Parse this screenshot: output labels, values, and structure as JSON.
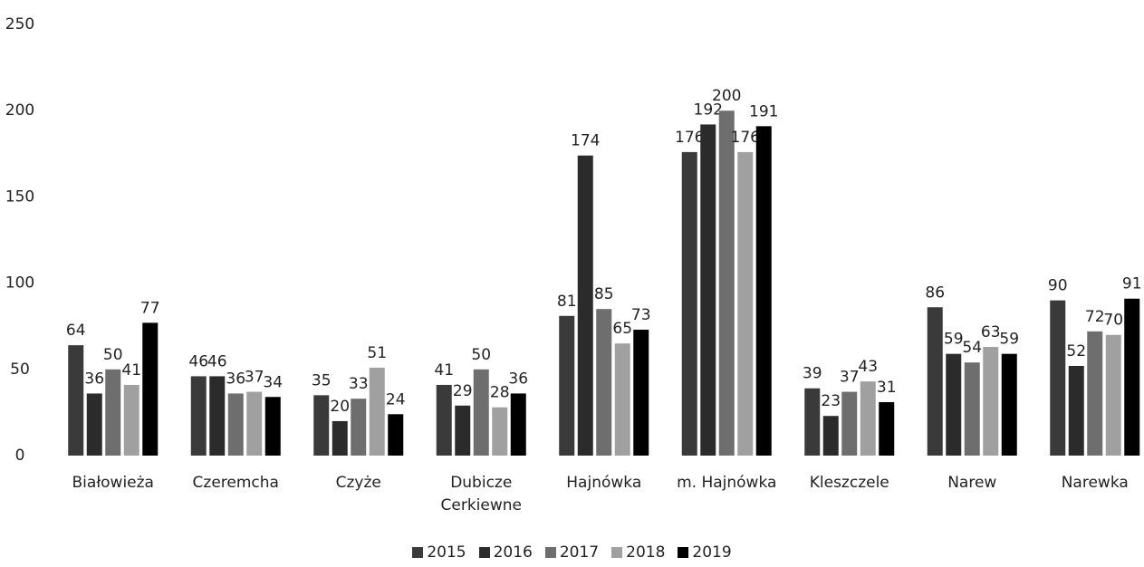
{
  "chart_data": {
    "type": "bar",
    "categories": [
      "Białowieża",
      "Czeremcha",
      "Czyże",
      "Dubicze Cerkiewne",
      "Hajnówka",
      "m. Hajnówka",
      "Kleszczele",
      "Narew",
      "Narewka"
    ],
    "series": [
      {
        "name": "2015",
        "color": "#3a3a3a",
        "values": [
          64,
          46,
          35,
          41,
          81,
          176,
          39,
          86,
          90
        ]
      },
      {
        "name": "2016",
        "color": "#2b2b2b",
        "values": [
          36,
          46,
          20,
          29,
          174,
          192,
          23,
          59,
          52
        ]
      },
      {
        "name": "2017",
        "color": "#6e6e6e",
        "values": [
          50,
          36,
          33,
          50,
          85,
          200,
          37,
          54,
          72
        ]
      },
      {
        "name": "2018",
        "color": "#a0a0a0",
        "values": [
          41,
          37,
          51,
          28,
          65,
          176,
          43,
          63,
          70
        ]
      },
      {
        "name": "2019",
        "color": "#000000",
        "values": [
          77,
          34,
          24,
          36,
          73,
          191,
          31,
          59,
          91
        ]
      }
    ],
    "ylim": [
      0,
      250
    ],
    "yticks": [
      0,
      50,
      100,
      150,
      200,
      250
    ],
    "grid": false,
    "legend": "bottom"
  }
}
